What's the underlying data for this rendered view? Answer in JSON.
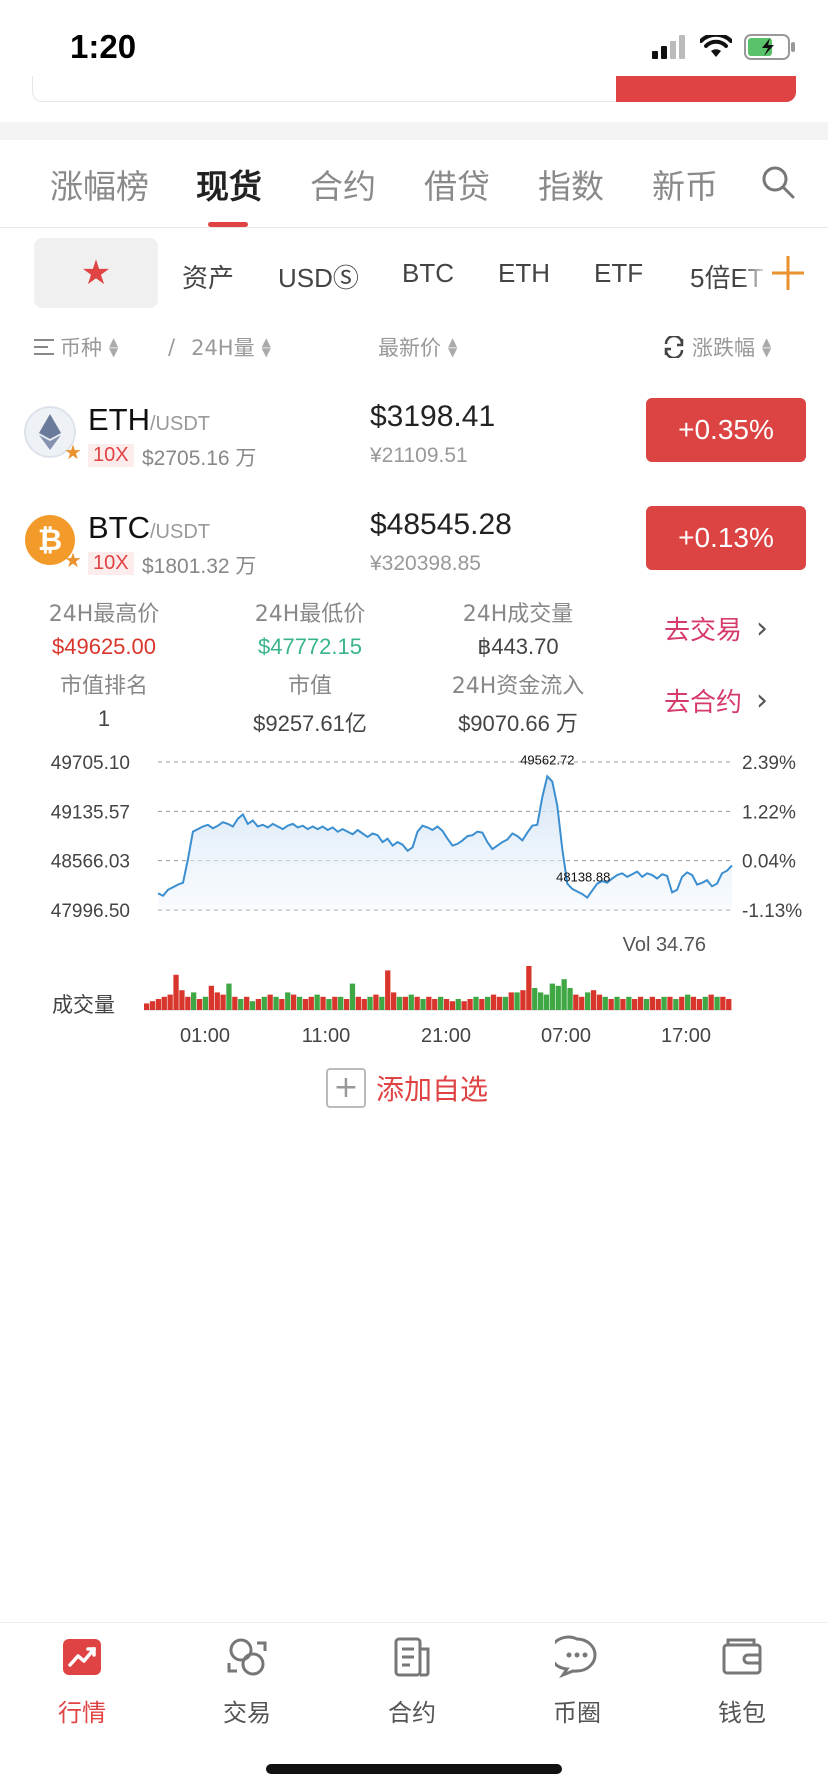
{
  "status_bar": {
    "time": "1:20"
  },
  "main_tabs": [
    {
      "label": "涨幅榜"
    },
    {
      "label": "现货"
    },
    {
      "label": "合约"
    },
    {
      "label": "借贷"
    },
    {
      "label": "指数"
    },
    {
      "label": "新币"
    }
  ],
  "sub_tabs": [
    {
      "label": "资产"
    },
    {
      "label": "USDⓈ"
    },
    {
      "label": "BTC"
    },
    {
      "label": "ETH"
    },
    {
      "label": "ETF"
    },
    {
      "label": "5倍ET"
    }
  ],
  "columns": {
    "coin": "币种",
    "separator": "/",
    "volume": "24H量",
    "price": "最新价",
    "change": "涨跌幅"
  },
  "coins": [
    {
      "symbol": "ETH",
      "pair": "/USDT",
      "leverage": "10X",
      "volume": "$2705.16 万",
      "price_usd": "$3198.41",
      "price_cny": "¥21109.51",
      "change": "+0.35%"
    },
    {
      "symbol": "BTC",
      "pair": "/USDT",
      "leverage": "10X",
      "volume": "$1801.32 万",
      "price_usd": "$48545.28",
      "price_cny": "¥320398.85",
      "change": "+0.13%"
    }
  ],
  "stats": {
    "high_label": "24H最高价",
    "high_value": "$49625.00",
    "low_label": "24H最低价",
    "low_value": "$47772.15",
    "turnover_label": "24H成交量",
    "turnover_value": "฿443.70",
    "rank_label": "市值排名",
    "rank_value": "1",
    "cap_label": "市值",
    "cap_value": "$9257.61亿",
    "inflow_label": "24H资金流入",
    "inflow_value": "$9070.66 万",
    "go_trade": "去交易",
    "go_contract": "去合约"
  },
  "chart_data": {
    "type": "line",
    "y_left_ticks": [
      "49705.10",
      "49135.57",
      "48566.03",
      "47996.50"
    ],
    "y_right_ticks": [
      "2.39%",
      "1.22%",
      "0.04%",
      "-1.13%"
    ],
    "ylim": [
      47996.5,
      49705.1
    ],
    "x_ticks": [
      "01:00",
      "11:00",
      "21:00",
      "07:00",
      "17:00"
    ],
    "max_label": "49562.72",
    "min_label": "48138.88",
    "vol_label": "Vol 34.76",
    "volume_label": "成交量",
    "colors": {
      "line": "#3b8fd0",
      "up": "#d8362c",
      "down": "#3fa845"
    },
    "prices": [
      48190,
      48160,
      48230,
      48260,
      48290,
      48310,
      48580,
      48900,
      48930,
      48960,
      48980,
      48940,
      48970,
      49010,
      48990,
      48960,
      49050,
      49100,
      48990,
      49030,
      48960,
      48980,
      48950,
      48990,
      48960,
      48930,
      48970,
      48990,
      48950,
      48970,
      48930,
      48960,
      48930,
      48960,
      48920,
      48950,
      48900,
      48930,
      48900,
      48870,
      48920,
      48880,
      48840,
      48880,
      48860,
      48780,
      48820,
      48740,
      48780,
      48750,
      48680,
      48720,
      48900,
      48970,
      48950,
      48920,
      48960,
      48910,
      48820,
      48740,
      48760,
      48800,
      48850,
      48860,
      48900,
      48890,
      48780,
      48700,
      48740,
      48780,
      48810,
      48880,
      48850,
      48800,
      48890,
      48970,
      48980,
      49300,
      49540,
      49480,
      49200,
      48700,
      48300,
      48240,
      48210,
      48180,
      48140,
      48220,
      48300,
      48330,
      48310,
      48360,
      48400,
      48420,
      48380,
      48410,
      48440,
      48380,
      48420,
      48400,
      48360,
      48410,
      48390,
      48200,
      48230,
      48380,
      48430,
      48400,
      48290,
      48310,
      48340,
      48270,
      48300,
      48420,
      48450,
      48510
    ],
    "volumes": [
      {
        "v": 0.15,
        "up": true
      },
      {
        "v": 0.2,
        "up": true
      },
      {
        "v": 0.25,
        "up": true
      },
      {
        "v": 0.3,
        "up": true
      },
      {
        "v": 0.35,
        "up": true
      },
      {
        "v": 0.8,
        "up": true
      },
      {
        "v": 0.45,
        "up": true
      },
      {
        "v": 0.3,
        "up": true
      },
      {
        "v": 0.4,
        "up": false
      },
      {
        "v": 0.25,
        "up": true
      },
      {
        "v": 0.3,
        "up": false
      },
      {
        "v": 0.55,
        "up": true
      },
      {
        "v": 0.4,
        "up": true
      },
      {
        "v": 0.35,
        "up": true
      },
      {
        "v": 0.6,
        "up": false
      },
      {
        "v": 0.3,
        "up": true
      },
      {
        "v": 0.25,
        "up": false
      },
      {
        "v": 0.3,
        "up": true
      },
      {
        "v": 0.2,
        "up": false
      },
      {
        "v": 0.25,
        "up": true
      },
      {
        "v": 0.3,
        "up": false
      },
      {
        "v": 0.35,
        "up": true
      },
      {
        "v": 0.3,
        "up": false
      },
      {
        "v": 0.25,
        "up": true
      },
      {
        "v": 0.4,
        "up": false
      },
      {
        "v": 0.35,
        "up": true
      },
      {
        "v": 0.3,
        "up": false
      },
      {
        "v": 0.25,
        "up": true
      },
      {
        "v": 0.3,
        "up": true
      },
      {
        "v": 0.35,
        "up": false
      },
      {
        "v": 0.3,
        "up": true
      },
      {
        "v": 0.25,
        "up": false
      },
      {
        "v": 0.3,
        "up": true
      },
      {
        "v": 0.3,
        "up": false
      },
      {
        "v": 0.25,
        "up": true
      },
      {
        "v": 0.6,
        "up": false
      },
      {
        "v": 0.3,
        "up": true
      },
      {
        "v": 0.25,
        "up": true
      },
      {
        "v": 0.3,
        "up": false
      },
      {
        "v": 0.35,
        "up": true
      },
      {
        "v": 0.3,
        "up": false
      },
      {
        "v": 0.9,
        "up": true
      },
      {
        "v": 0.4,
        "up": true
      },
      {
        "v": 0.3,
        "up": false
      },
      {
        "v": 0.3,
        "up": true
      },
      {
        "v": 0.35,
        "up": false
      },
      {
        "v": 0.3,
        "up": true
      },
      {
        "v": 0.25,
        "up": false
      },
      {
        "v": 0.3,
        "up": true
      },
      {
        "v": 0.25,
        "up": true
      },
      {
        "v": 0.3,
        "up": false
      },
      {
        "v": 0.25,
        "up": true
      },
      {
        "v": 0.2,
        "up": true
      },
      {
        "v": 0.25,
        "up": false
      },
      {
        "v": 0.2,
        "up": true
      },
      {
        "v": 0.25,
        "up": true
      },
      {
        "v": 0.3,
        "up": false
      },
      {
        "v": 0.25,
        "up": true
      },
      {
        "v": 0.3,
        "up": false
      },
      {
        "v": 0.35,
        "up": true
      },
      {
        "v": 0.3,
        "up": true
      },
      {
        "v": 0.3,
        "up": false
      },
      {
        "v": 0.4,
        "up": true
      },
      {
        "v": 0.4,
        "up": false
      },
      {
        "v": 0.45,
        "up": true
      },
      {
        "v": 1.0,
        "up": true
      },
      {
        "v": 0.5,
        "up": false
      },
      {
        "v": 0.4,
        "up": false
      },
      {
        "v": 0.35,
        "up": false
      },
      {
        "v": 0.6,
        "up": false
      },
      {
        "v": 0.55,
        "up": false
      },
      {
        "v": 0.7,
        "up": false
      },
      {
        "v": 0.5,
        "up": false
      },
      {
        "v": 0.35,
        "up": true
      },
      {
        "v": 0.3,
        "up": true
      },
      {
        "v": 0.4,
        "up": false
      },
      {
        "v": 0.45,
        "up": true
      },
      {
        "v": 0.35,
        "up": true
      },
      {
        "v": 0.3,
        "up": false
      },
      {
        "v": 0.25,
        "up": true
      },
      {
        "v": 0.3,
        "up": false
      },
      {
        "v": 0.25,
        "up": true
      },
      {
        "v": 0.3,
        "up": false
      },
      {
        "v": 0.25,
        "up": true
      },
      {
        "v": 0.3,
        "up": true
      },
      {
        "v": 0.25,
        "up": false
      },
      {
        "v": 0.3,
        "up": true
      },
      {
        "v": 0.25,
        "up": true
      },
      {
        "v": 0.3,
        "up": false
      },
      {
        "v": 0.3,
        "up": true
      },
      {
        "v": 0.25,
        "up": false
      },
      {
        "v": 0.3,
        "up": true
      },
      {
        "v": 0.35,
        "up": false
      },
      {
        "v": 0.3,
        "up": true
      },
      {
        "v": 0.25,
        "up": true
      },
      {
        "v": 0.3,
        "up": false
      },
      {
        "v": 0.35,
        "up": true
      },
      {
        "v": 0.3,
        "up": false
      },
      {
        "v": 0.3,
        "up": true
      },
      {
        "v": 0.25,
        "up": true
      }
    ]
  },
  "add_favorite": "添加自选",
  "bottom_nav": [
    {
      "label": "行情",
      "icon": "market-chart-icon",
      "active": true
    },
    {
      "label": "交易",
      "icon": "trade-exchange-icon",
      "active": false
    },
    {
      "label": "合约",
      "icon": "contract-document-icon",
      "active": false
    },
    {
      "label": "币圈",
      "icon": "community-chat-icon",
      "active": false
    },
    {
      "label": "钱包",
      "icon": "wallet-icon",
      "active": false
    }
  ],
  "colors": {
    "accent": "#e04343",
    "positive_badge": "#dc4343",
    "high_value": "#d8362c",
    "low_value": "#39b58a",
    "link": "#d63a6a",
    "orange": "#e9922e"
  }
}
